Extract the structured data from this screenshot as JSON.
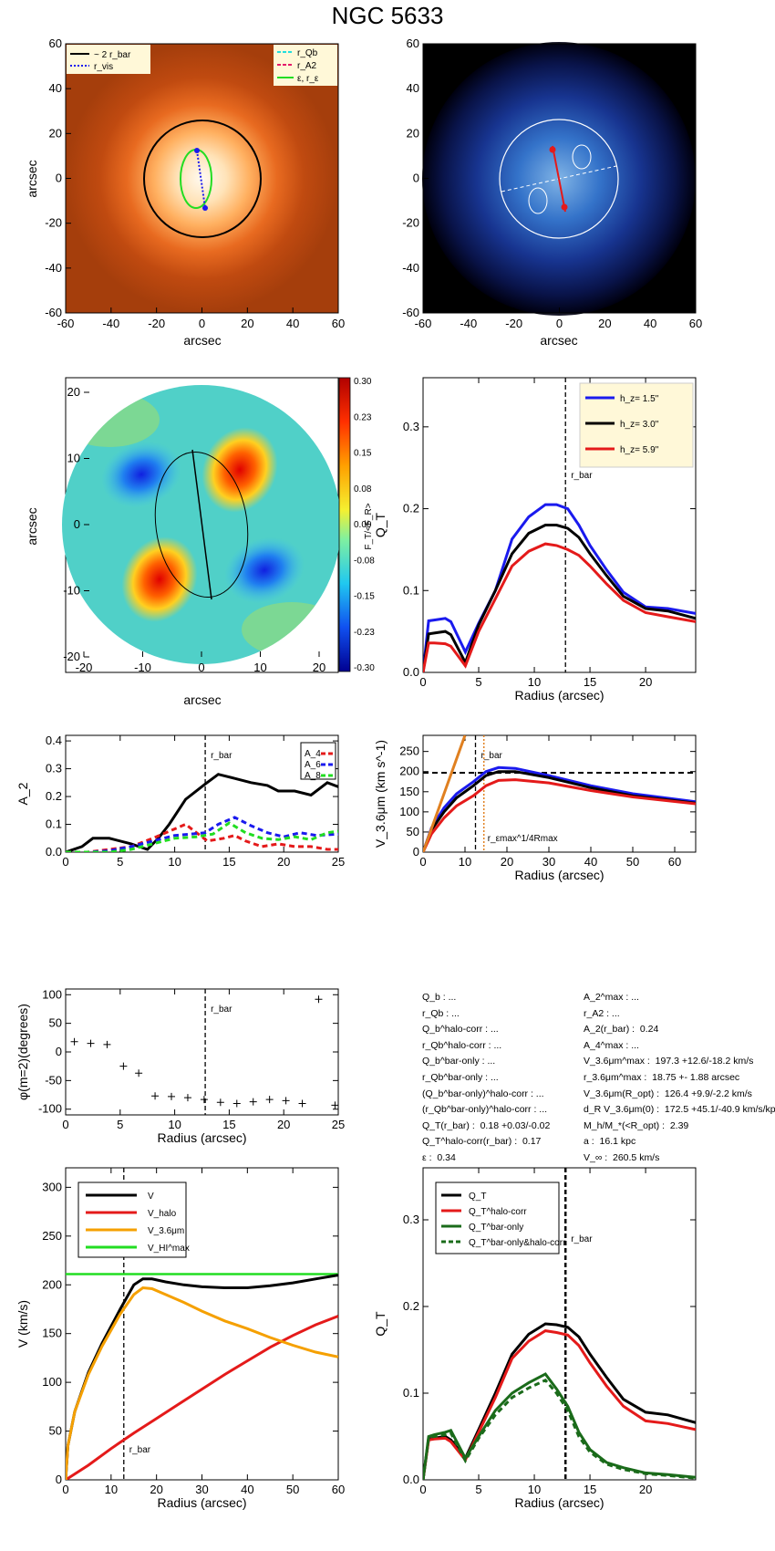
{
  "page": {
    "title": "NGC 5633"
  },
  "colors": {
    "blue": "#1a1aee",
    "black": "#000000",
    "red": "#e41a1a",
    "orange": "#f5a000",
    "green": "#22dd22",
    "darkgreen": "#1a6b1a",
    "brown_orange": "#e08020"
  },
  "images": {
    "img1": {
      "xlabel": "arcsec",
      "ylabel": "arcsec",
      "xticks": [
        "-60",
        "-40",
        "-20",
        "0",
        "20",
        "40",
        "60"
      ],
      "yticks": [
        "60",
        "40",
        "20",
        "0",
        "-20",
        "-40",
        "-60"
      ],
      "legend_left": [
        "~ 2 r_bar",
        "r_vis"
      ],
      "legend_right": [
        "r_Qb",
        "r_A2",
        "ε, r_ε"
      ]
    },
    "img2": {
      "xlabel": "arcsec",
      "yticks": [
        "60",
        "40",
        "20",
        "0",
        "-20",
        "-40",
        "-60"
      ],
      "xticks": [
        "-60",
        "-40",
        "-20",
        "0",
        "20",
        "40",
        "60"
      ]
    },
    "img3": {
      "xlabel": "arcsec",
      "ylabel": "arcsec",
      "xticks": [
        "-20",
        "-10",
        "0",
        "10",
        "20"
      ],
      "yticks": [
        "20",
        "10",
        "0",
        "-10",
        "-20"
      ],
      "cbar_ticks": [
        "0.30",
        "0.23",
        "0.15",
        "0.08",
        "0.00",
        "-0.08",
        "-0.15",
        "-0.23",
        "-0.30"
      ],
      "cbar_label": "F_T/<F_R>"
    }
  },
  "chart_data": [
    {
      "id": "qt_hz",
      "type": "line",
      "xlabel": "Radius (arcsec)",
      "ylabel": "Q_T",
      "xlim": [
        0,
        24.5
      ],
      "ylim": [
        0,
        0.36
      ],
      "xticks": [
        "0",
        "5",
        "10",
        "15",
        "20"
      ],
      "yticks": [
        "0.0",
        "0.1",
        "0.2",
        "0.3"
      ],
      "vline": 12.8,
      "vline_label": "r_bar",
      "series": [
        {
          "name": "h_z= 1.5''",
          "color": "blue",
          "x": [
            0,
            0.5,
            1,
            2,
            2.5,
            3.8,
            5,
            6.5,
            8,
            9.5,
            11,
            12,
            13,
            14,
            15,
            16.5,
            18,
            20,
            22,
            24.5
          ],
          "y": [
            0,
            0.063,
            0.064,
            0.066,
            0.062,
            0.025,
            0.06,
            0.1,
            0.163,
            0.19,
            0.205,
            0.205,
            0.2,
            0.18,
            0.155,
            0.125,
            0.098,
            0.08,
            0.078,
            0.072
          ]
        },
        {
          "name": "h_z= 3.0''",
          "color": "black",
          "x": [
            0,
            0.5,
            1,
            2,
            2.5,
            3.8,
            5,
            6.5,
            8,
            9.5,
            11,
            12,
            13,
            14,
            15,
            16.5,
            18,
            20,
            22,
            24.5
          ],
          "y": [
            0,
            0.047,
            0.048,
            0.05,
            0.046,
            0.012,
            0.058,
            0.1,
            0.145,
            0.17,
            0.18,
            0.18,
            0.176,
            0.165,
            0.145,
            0.118,
            0.093,
            0.078,
            0.075,
            0.066
          ]
        },
        {
          "name": "h_z= 5.9''",
          "color": "red",
          "x": [
            0,
            0.5,
            1,
            2,
            2.5,
            3.8,
            5,
            6.5,
            8,
            9.5,
            11,
            12,
            13,
            14,
            15,
            16.5,
            18,
            20,
            22,
            24.5
          ],
          "y": [
            0,
            0.036,
            0.036,
            0.035,
            0.032,
            0.008,
            0.05,
            0.09,
            0.13,
            0.148,
            0.157,
            0.155,
            0.15,
            0.143,
            0.13,
            0.108,
            0.088,
            0.073,
            0.068,
            0.062
          ]
        }
      ]
    },
    {
      "id": "a2",
      "type": "line",
      "xlabel": "",
      "ylabel": "A_2",
      "xlim": [
        0,
        25
      ],
      "ylim": [
        0,
        0.42
      ],
      "xticks": [
        "0",
        "5",
        "10",
        "15",
        "20",
        "25"
      ],
      "yticks": [
        "0.0",
        "0.1",
        "0.2",
        "0.3",
        "0.4"
      ],
      "vline": 12.8,
      "vline_label": "r_bar",
      "legend": [
        "A_4",
        "A_6",
        "A_8"
      ],
      "series": [
        {
          "name": "A_2",
          "color": "black",
          "dash": false,
          "x": [
            0,
            1.5,
            2.5,
            4,
            6,
            7.5,
            8.5,
            9.5,
            11,
            12.8,
            14,
            15.5,
            17,
            18.5,
            19.5,
            21,
            22.5,
            24,
            25
          ],
          "y": [
            0,
            0.02,
            0.05,
            0.05,
            0.03,
            0.01,
            0.05,
            0.1,
            0.19,
            0.245,
            0.28,
            0.265,
            0.25,
            0.24,
            0.22,
            0.22,
            0.205,
            0.25,
            0.235
          ]
        },
        {
          "name": "A_4",
          "color": "red",
          "dash": true,
          "x": [
            0,
            2,
            4,
            6,
            8,
            9.5,
            11,
            12,
            13,
            14.5,
            15.5,
            16.5,
            18,
            19.5,
            21,
            22.5,
            24,
            25
          ],
          "y": [
            0,
            0.0,
            0.01,
            0.02,
            0.05,
            0.075,
            0.1,
            0.07,
            0.04,
            0.05,
            0.06,
            0.04,
            0.02,
            0.03,
            0.02,
            0.02,
            0.01,
            0.01
          ]
        },
        {
          "name": "A_6",
          "color": "blue",
          "dash": true,
          "x": [
            0,
            2,
            4,
            6,
            8,
            10,
            11.5,
            12.8,
            14,
            15.5,
            17,
            18.5,
            20,
            21.5,
            23,
            25
          ],
          "y": [
            0,
            0.0,
            0.005,
            0.02,
            0.04,
            0.06,
            0.065,
            0.07,
            0.1,
            0.125,
            0.095,
            0.07,
            0.055,
            0.07,
            0.06,
            0.065
          ]
        },
        {
          "name": "A_8",
          "color": "green",
          "dash": true,
          "x": [
            0,
            2,
            4,
            6,
            8,
            10,
            12,
            13.5,
            15,
            16.5,
            18,
            19.5,
            21,
            22.5,
            24,
            25
          ],
          "y": [
            0,
            0.0,
            0.0,
            0.01,
            0.03,
            0.05,
            0.055,
            0.065,
            0.105,
            0.07,
            0.05,
            0.045,
            0.055,
            0.045,
            0.07,
            0.075
          ]
        }
      ]
    },
    {
      "id": "vrot",
      "type": "line",
      "xlabel": "Radius (arcsec)",
      "ylabel": "V_3.6μm (km s^-1)",
      "xlim": [
        0,
        65
      ],
      "ylim": [
        0,
        290
      ],
      "xticks": [
        "0",
        "10",
        "20",
        "30",
        "40",
        "50",
        "60"
      ],
      "yticks": [
        "0",
        "50",
        "100",
        "150",
        "200",
        "250"
      ],
      "vline": 12.5,
      "vline_label": "r_bar",
      "hline": 197,
      "orange_vline": 14.5,
      "orange_vline_label": "r_εmax^1/4Rmax",
      "series": [
        {
          "name": "blue",
          "color": "blue",
          "x": [
            0,
            2,
            5,
            8,
            12,
            15,
            18,
            22,
            30,
            40,
            50,
            65
          ],
          "y": [
            0,
            60,
            110,
            145,
            175,
            200,
            210,
            208,
            190,
            165,
            145,
            125
          ]
        },
        {
          "name": "black",
          "color": "black",
          "x": [
            0,
            2,
            5,
            8,
            12,
            15,
            18,
            22,
            30,
            40,
            50,
            65
          ],
          "y": [
            0,
            55,
            100,
            135,
            165,
            190,
            200,
            200,
            185,
            160,
            140,
            122
          ]
        },
        {
          "name": "red",
          "color": "red",
          "x": [
            0,
            2,
            5,
            8,
            12,
            15,
            18,
            22,
            30,
            40,
            50,
            65
          ],
          "y": [
            0,
            45,
            85,
            115,
            140,
            165,
            178,
            180,
            172,
            153,
            137,
            120
          ]
        },
        {
          "name": "orange",
          "color": "brown_orange",
          "x": [
            0,
            10
          ],
          "y": [
            0,
            290
          ]
        }
      ]
    },
    {
      "id": "phase",
      "type": "scatter",
      "xlabel": "Radius (arcsec)",
      "ylabel": "φ(m=2)(degrees)",
      "xlim": [
        0,
        25
      ],
      "ylim": [
        -110,
        110
      ],
      "xticks": [
        "0",
        "5",
        "10",
        "15",
        "20",
        "25"
      ],
      "yticks": [
        "100",
        "50",
        "0",
        "-50",
        "-100"
      ],
      "vline": 12.8,
      "vline_label": "r_bar",
      "x": [
        0.8,
        2.3,
        3.8,
        5.3,
        6.7,
        8.2,
        9.7,
        11.2,
        12.7,
        14.2,
        15.7,
        17.2,
        18.7,
        20.2,
        21.7,
        23.2,
        24.7
      ],
      "y": [
        18,
        15,
        13,
        -25,
        -37,
        -77,
        -78,
        -80,
        -83,
        -88,
        -90,
        -87,
        -83,
        -85,
        -90,
        92,
        -93
      ]
    },
    {
      "id": "vcurves",
      "type": "line",
      "xlabel": "Radius (arcsec)",
      "ylabel": "V (km/s)",
      "xlim": [
        0,
        60
      ],
      "ylim": [
        0,
        320
      ],
      "xticks": [
        "0",
        "10",
        "20",
        "30",
        "40",
        "50",
        "60"
      ],
      "yticks": [
        "0",
        "50",
        "100",
        "150",
        "200",
        "250",
        "300"
      ],
      "vline": 12.8,
      "vline_label": "r_bar",
      "hline": 211,
      "legend": [
        "V",
        "V_halo",
        "V_3.6μm",
        "V_HI^max"
      ],
      "series": [
        {
          "name": "V",
          "color": "black",
          "x": [
            0,
            0.5,
            2,
            5,
            8,
            12,
            15,
            17,
            19,
            22,
            26,
            30,
            35,
            40,
            45,
            50,
            55,
            60
          ],
          "y": [
            0,
            35,
            70,
            110,
            140,
            175,
            200,
            206,
            206,
            203,
            200,
            198,
            197,
            197,
            199,
            202,
            206,
            210
          ]
        },
        {
          "name": "V_halo",
          "color": "red",
          "x": [
            0,
            5,
            10,
            15,
            20,
            25,
            30,
            35,
            40,
            45,
            50,
            55,
            60
          ],
          "y": [
            0,
            15,
            32,
            48,
            63,
            78,
            93,
            108,
            122,
            136,
            148,
            159,
            168
          ]
        },
        {
          "name": "V_3.6μm",
          "color": "orange",
          "x": [
            0,
            0.5,
            2,
            5,
            8,
            12,
            15,
            17,
            19,
            22,
            26,
            30,
            35,
            40,
            45,
            50,
            55,
            60
          ],
          "y": [
            0,
            35,
            70,
            108,
            137,
            170,
            190,
            197,
            196,
            190,
            182,
            173,
            163,
            155,
            146,
            138,
            131,
            126
          ]
        }
      ]
    },
    {
      "id": "qt_corr",
      "type": "line",
      "xlabel": "Radius (arcsec)",
      "ylabel": "Q_T",
      "xlim": [
        0,
        24.5
      ],
      "ylim": [
        0,
        0.36
      ],
      "xticks": [
        "0",
        "5",
        "10",
        "15",
        "20"
      ],
      "yticks": [
        "0.0",
        "0.1",
        "0.2",
        "0.3"
      ],
      "vline": 12.8,
      "vline_label": "r_bar",
      "legend": [
        "Q_T",
        "Q_T^halo-corr",
        "Q_T^bar-only",
        "Q_T^bar-only&halo-corr"
      ],
      "series": [
        {
          "name": "Q_T",
          "color": "black",
          "dash": false,
          "x": [
            0,
            0.5,
            1,
            2,
            2.5,
            3.8,
            5,
            6.5,
            8,
            9.5,
            11,
            12,
            13,
            14,
            15,
            16.5,
            18,
            20,
            22,
            24.5
          ],
          "y": [
            0,
            0.047,
            0.048,
            0.05,
            0.046,
            0.025,
            0.058,
            0.1,
            0.145,
            0.168,
            0.18,
            0.179,
            0.176,
            0.165,
            0.145,
            0.118,
            0.093,
            0.078,
            0.075,
            0.066
          ]
        },
        {
          "name": "Q_T^halo-corr",
          "color": "red",
          "dash": false,
          "x": [
            0,
            0.5,
            1,
            2,
            2.5,
            3.8,
            5,
            6.5,
            8,
            9.5,
            11,
            12,
            13,
            14,
            15,
            16.5,
            18,
            20,
            22,
            24.5
          ],
          "y": [
            0,
            0.046,
            0.047,
            0.048,
            0.044,
            0.023,
            0.055,
            0.095,
            0.14,
            0.16,
            0.172,
            0.17,
            0.167,
            0.155,
            0.135,
            0.108,
            0.085,
            0.068,
            0.065,
            0.058
          ]
        },
        {
          "name": "Q_T^bar-only",
          "color": "darkgreen",
          "dash": false,
          "x": [
            0,
            0.5,
            1,
            2,
            2.5,
            3.8,
            5,
            6.5,
            8,
            9.5,
            11,
            12,
            13,
            14,
            15,
            16.5,
            18,
            20,
            22,
            24.5
          ],
          "y": [
            0,
            0.05,
            0.052,
            0.055,
            0.057,
            0.025,
            0.05,
            0.08,
            0.1,
            0.112,
            0.122,
            0.105,
            0.085,
            0.055,
            0.035,
            0.02,
            0.014,
            0.008,
            0.006,
            0.003
          ]
        },
        {
          "name": "Q_T^bar-only&halo-corr",
          "color": "darkgreen",
          "dash": true,
          "x": [
            0,
            0.5,
            1,
            2,
            2.5,
            3.8,
            5,
            6.5,
            8,
            9.5,
            11,
            12,
            13,
            14,
            15,
            16.5,
            18,
            20,
            22,
            24.5
          ],
          "y": [
            0,
            0.048,
            0.05,
            0.052,
            0.054,
            0.022,
            0.048,
            0.075,
            0.095,
            0.106,
            0.115,
            0.1,
            0.08,
            0.05,
            0.032,
            0.018,
            0.012,
            0.007,
            0.005,
            0.002
          ]
        }
      ]
    }
  ],
  "info_left": [
    "Q_b : ...",
    "r_Qb : ...",
    "Q_b^halo-corr : ...",
    "r_Qb^halo-corr : ...",
    "Q_b^bar-only : ...",
    "r_Qb^bar-only : ...",
    "(Q_b^bar-only)^halo-corr : ...",
    "(r_Qb^bar-only)^halo-corr : ...",
    "Q_T(r_bar) :  0.18 +0.03/-0.02",
    "Q_T^halo-corr(r_bar) :  0.17",
    "ε :  0.34"
  ],
  "info_right": [
    "A_2^max : ...",
    "r_A2 : ...",
    "A_2(r_bar) :  0.24",
    "A_4^max : ...",
    "V_3.6μm^max :  197.3 +12.6/-18.2 km/s",
    "r_3.6μm^max :  18.75 +- 1.88 arcsec",
    "V_3.6μm(R_opt) :  126.4 +9.9/-2.2 km/s",
    "d_R V_3.6μm(0) :  172.5 +45.1/-40.9 km/s/kpc",
    "M_h/M_*(<R_opt) :  2.39",
    "a :  16.1 kpc",
    "V_∞ :  260.5 km/s"
  ]
}
